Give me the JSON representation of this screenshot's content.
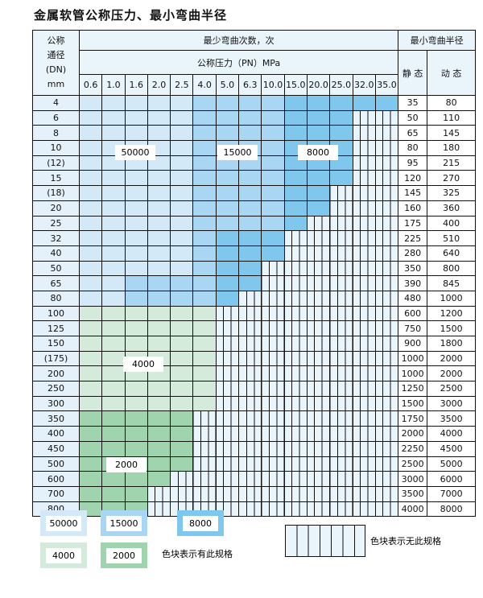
{
  "title": "金属软管公称压力、最小弯曲半径",
  "header": {
    "dn_label": [
      "公称",
      "通径",
      "(DN)",
      "mm"
    ],
    "cycles_label": "最少弯曲次数，次",
    "pressure_label": "公称压力（PN）MPa",
    "radius_label": "最小弯曲半径",
    "static_label": "静 态",
    "dynamic_label": "动 态",
    "pressures": [
      "0.6",
      "1.0",
      "1.6",
      "2.0",
      "2.5",
      "4.0",
      "5.0",
      "6.3",
      "10.0",
      "15.0",
      "20.0",
      "25.0",
      "32.0",
      "35.0"
    ]
  },
  "rows": [
    {
      "dn": "4",
      "avail": 14,
      "static": "35",
      "dynamic": "80"
    },
    {
      "dn": "6",
      "avail": 12,
      "static": "50",
      "dynamic": "110"
    },
    {
      "dn": "8",
      "avail": 12,
      "static": "65",
      "dynamic": "145"
    },
    {
      "dn": "10",
      "avail": 12,
      "static": "80",
      "dynamic": "180"
    },
    {
      "dn": "(12)",
      "avail": 12,
      "static": "95",
      "dynamic": "215"
    },
    {
      "dn": "15",
      "avail": 12,
      "static": "120",
      "dynamic": "270"
    },
    {
      "dn": "(18)",
      "avail": 11,
      "static": "145",
      "dynamic": "325"
    },
    {
      "dn": "20",
      "avail": 11,
      "static": "160",
      "dynamic": "360"
    },
    {
      "dn": "25",
      "avail": 10,
      "static": "175",
      "dynamic": "400"
    },
    {
      "dn": "32",
      "avail": 9,
      "static": "225",
      "dynamic": "510"
    },
    {
      "dn": "40",
      "avail": 9,
      "static": "280",
      "dynamic": "640"
    },
    {
      "dn": "50",
      "avail": 8,
      "static": "350",
      "dynamic": "800"
    },
    {
      "dn": "65",
      "avail": 8,
      "static": "390",
      "dynamic": "845"
    },
    {
      "dn": "80",
      "avail": 7,
      "static": "480",
      "dynamic": "1000"
    },
    {
      "dn": "100",
      "avail": 6,
      "static": "600",
      "dynamic": "1200"
    },
    {
      "dn": "125",
      "avail": 6,
      "static": "750",
      "dynamic": "1500"
    },
    {
      "dn": "150",
      "avail": 6,
      "static": "900",
      "dynamic": "1800"
    },
    {
      "dn": "(175)",
      "avail": 6,
      "static": "1000",
      "dynamic": "2000"
    },
    {
      "dn": "200",
      "avail": 6,
      "static": "1000",
      "dynamic": "2000"
    },
    {
      "dn": "250",
      "avail": 6,
      "static": "1250",
      "dynamic": "2500"
    },
    {
      "dn": "300",
      "avail": 6,
      "static": "1500",
      "dynamic": "3000"
    },
    {
      "dn": "350",
      "avail": 5,
      "static": "1750",
      "dynamic": "3500"
    },
    {
      "dn": "400",
      "avail": 5,
      "static": "2000",
      "dynamic": "4000"
    },
    {
      "dn": "450",
      "avail": 5,
      "static": "2250",
      "dynamic": "4500"
    },
    {
      "dn": "500",
      "avail": 5,
      "static": "2500",
      "dynamic": "5000"
    },
    {
      "dn": "600",
      "avail": 4,
      "static": "3000",
      "dynamic": "6000"
    },
    {
      "dn": "700",
      "avail": 3,
      "static": "3500",
      "dynamic": "7000"
    },
    {
      "dn": "800",
      "avail": 3,
      "static": "4000",
      "dynamic": "8000"
    }
  ],
  "region_labels": {
    "a": "50000",
    "b": "15000",
    "c": "8000",
    "d": "4000",
    "e": "2000"
  },
  "colors": {
    "light_blue": "#d4e9f8",
    "mid_blue": "#a9d7f3",
    "dark_blue": "#80c7ee",
    "light_green": "#d4eadb",
    "dark_green": "#9fd4ae",
    "none": "#eaf4fb"
  },
  "legend": {
    "items": [
      "50000",
      "15000",
      "8000",
      "4000",
      "2000"
    ],
    "has_spec": "色块表示有此规格",
    "no_spec": "色块表示无此规格"
  }
}
